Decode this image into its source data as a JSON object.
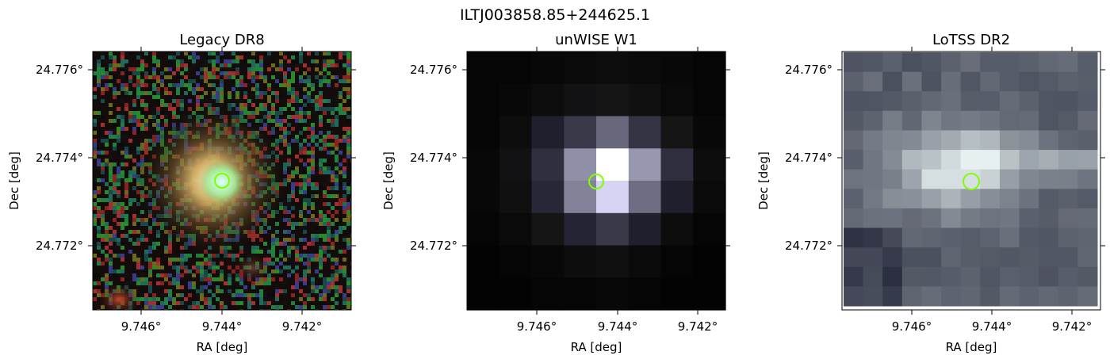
{
  "figure": {
    "title": "ILTJ003858.85+244625.1"
  },
  "panels": [
    {
      "title": "Legacy DR8",
      "xlabel": "RA [deg]",
      "ylabel": "Dec [deg]",
      "xticks": [
        "9.746°",
        "9.744°",
        "9.742°"
      ],
      "yticks": [
        "24.776°",
        "24.774°",
        "24.772°"
      ],
      "image_kind": "rgb-optical-noisy",
      "marker": {
        "shape": "circle",
        "color": "#7fff00"
      }
    },
    {
      "title": "unWISE W1",
      "xlabel": "RA [deg]",
      "ylabel": "Dec [deg]",
      "xticks": [
        "9.746°",
        "9.744°",
        "9.742°"
      ],
      "yticks": [
        "24.776°",
        "24.774°",
        "24.772°"
      ],
      "image_kind": "grayscale-low-res",
      "marker": {
        "shape": "circle",
        "color": "#7fff00"
      }
    },
    {
      "title": "LoTSS DR2",
      "xlabel": "RA [deg]",
      "ylabel": "Dec [deg]",
      "xticks": [
        "9.746°",
        "9.744°",
        "9.742°"
      ],
      "yticks": [
        "24.776°",
        "24.774°",
        "24.772°"
      ],
      "image_kind": "bone-colormap-radio",
      "marker": {
        "shape": "circle",
        "color": "#7fff00"
      }
    }
  ]
}
